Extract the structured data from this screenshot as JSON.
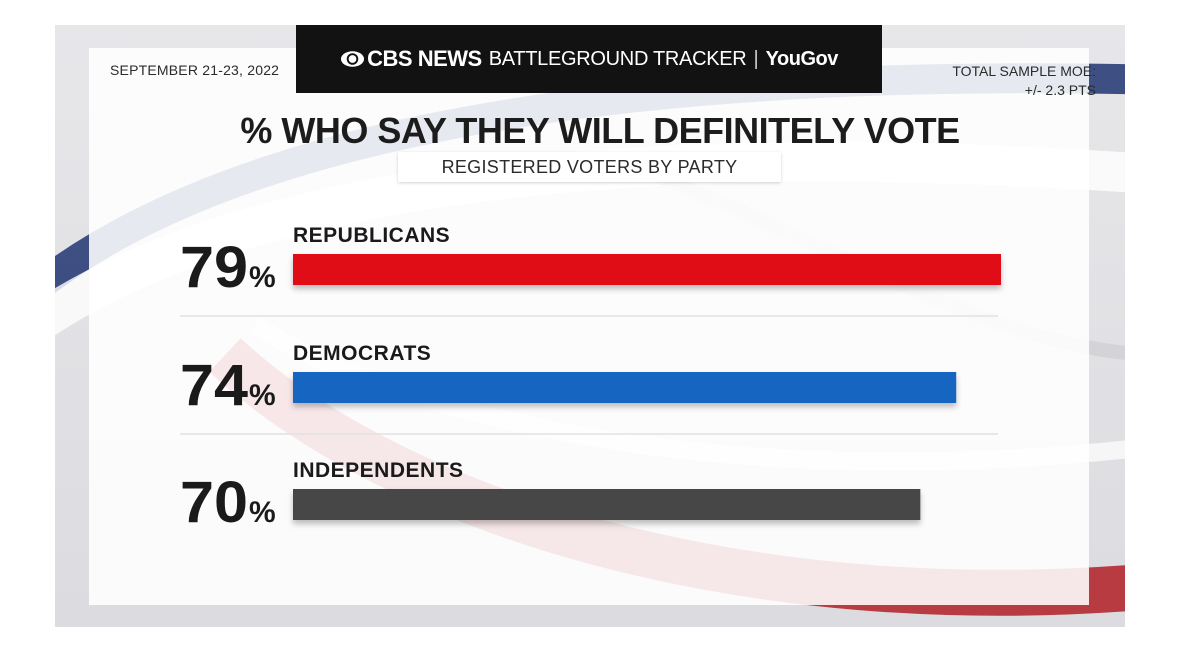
{
  "header": {
    "brand_cbs": "CBS NEWS",
    "brand_tracker": "BATTLEGROUND TRACKER",
    "separator": "|",
    "brand_partner": "YouGov",
    "date": "SEPTEMBER 21-23, 2022",
    "moe_line1": "TOTAL SAMPLE MOE:",
    "moe_line2": "+/- 2.3 PTS"
  },
  "colors": {
    "republicans": "#e00d12",
    "democrats": "#1565c0",
    "independents": "#474747",
    "header_bg": "#121212"
  },
  "chart_data": {
    "type": "bar",
    "orientation": "horizontal",
    "title": "% WHO SAY THEY WILL DEFINITELY VOTE",
    "subtitle": "REGISTERED VOTERS BY PARTY",
    "categories": [
      "REPUBLICANS",
      "DEMOCRATS",
      "INDEPENDENTS"
    ],
    "values": [
      79,
      74,
      70
    ],
    "unit": "%",
    "value_labels": [
      "79",
      "74",
      "70"
    ],
    "xlim": [
      0,
      79
    ],
    "grid": false,
    "legend": "none"
  }
}
